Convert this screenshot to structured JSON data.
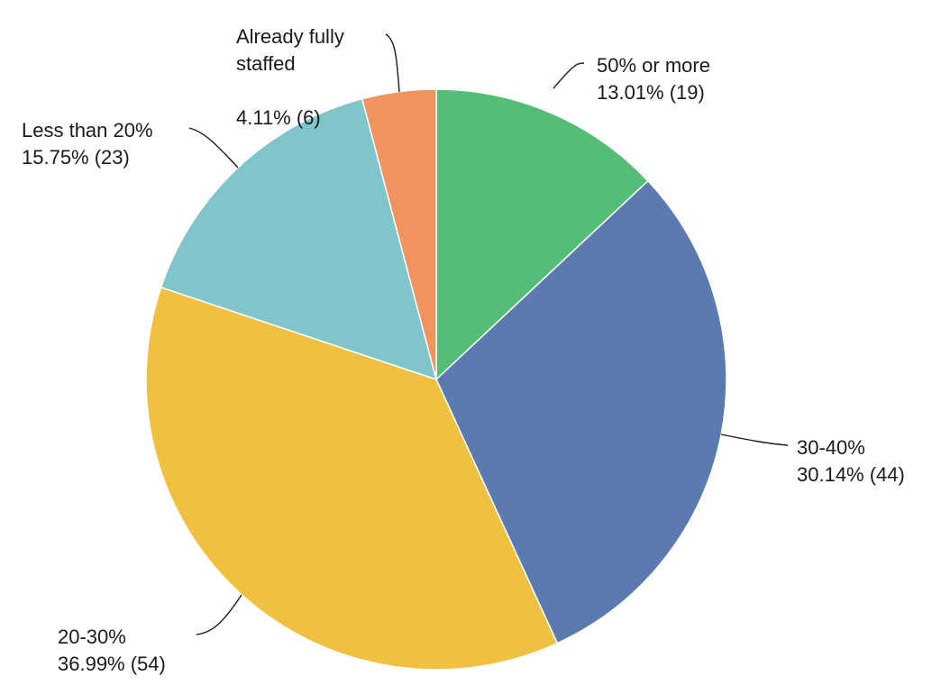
{
  "chart_data": {
    "type": "pie",
    "slices": [
      {
        "label": "50% or more",
        "percent_text": "13.01% (19)",
        "percent": 13.01,
        "count": 19,
        "color": "#55bd78"
      },
      {
        "label": "30-40%",
        "percent_text": "30.14% (44)",
        "percent": 30.14,
        "count": 44,
        "color": "#5b7bb0"
      },
      {
        "label": "20-30%",
        "percent_text": "36.99% (54)",
        "percent": 36.99,
        "count": 54,
        "color": "#f0c040"
      },
      {
        "label": "Less than 20%",
        "percent_text": "15.75% (23)",
        "percent": 15.75,
        "count": 23,
        "color": "#80c5c9"
      },
      {
        "label": "Already fully staffed",
        "label_lines": [
          "Already fully",
          "staffed"
        ],
        "percent_text": "4.11% (6)",
        "percent": 4.11,
        "count": 6,
        "color": "#f0935e"
      }
    ]
  }
}
